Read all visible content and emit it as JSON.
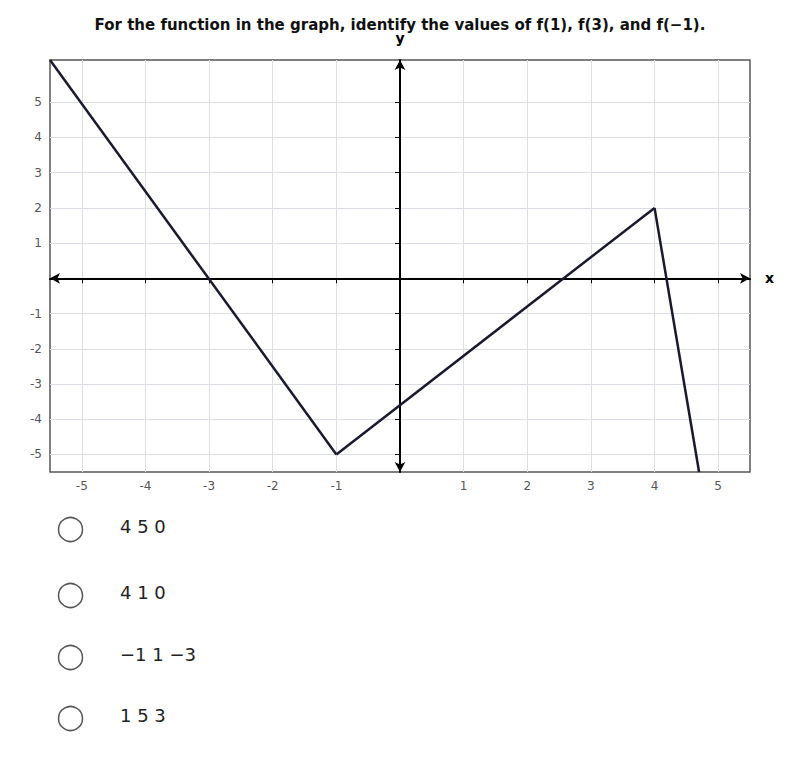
{
  "chart_data": {
    "type": "line",
    "title": "For the function in the graph, identify the values of f(1), f(3), and f(−1).",
    "xlabel": "x",
    "ylabel": "y",
    "xlim": [
      -5.5,
      5.5
    ],
    "ylim": [
      -5.5,
      6.2
    ],
    "xticks": [
      -5,
      -4,
      -3,
      -2,
      -1,
      1,
      2,
      3,
      4,
      5
    ],
    "yticks": [
      -5,
      -4,
      -3,
      -2,
      -1,
      1,
      2,
      3,
      4,
      5
    ],
    "grid": true,
    "series": [
      {
        "color": "#1a1a2e",
        "x": [
          -5.5,
          -1
        ],
        "values": [
          6.2,
          -5
        ]
      },
      {
        "color": "#1a1a2e",
        "x": [
          -1,
          4
        ],
        "values": [
          -5,
          2
        ]
      },
      {
        "color": "#1a1a2e",
        "x": [
          4,
          4.7
        ],
        "values": [
          2,
          -5.5
        ]
      }
    ],
    "annotations": [
      "4 5 0",
      "4 1 0",
      "−1 1 −3",
      "1 5 3"
    ]
  }
}
